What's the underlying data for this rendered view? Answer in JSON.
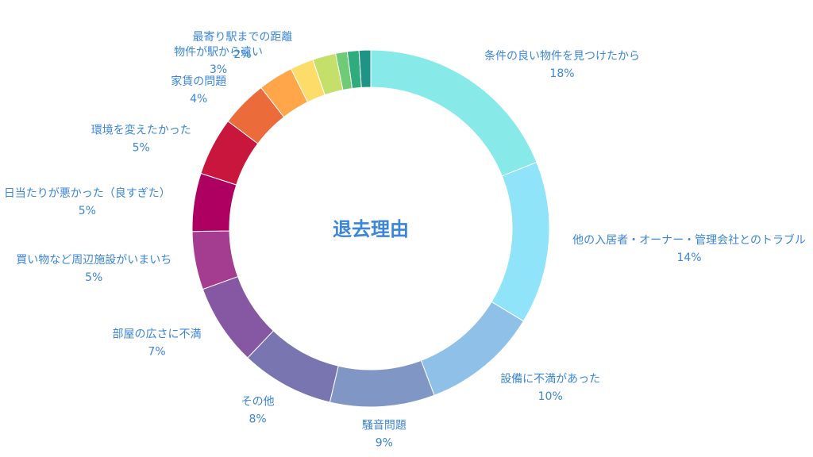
{
  "chart_data": {
    "type": "pie",
    "title": "",
    "center_label": "退去理由",
    "categories": [
      "条件の良い物件を見つけたから",
      "他の入居者・オーナー・管理会社とのトラブル",
      "設備に不満があった",
      "騒音問題",
      "その他",
      "部屋の広さに不満",
      "買い物など周辺施設がいまいち",
      "日当たりが悪かった（良すぎた）",
      "環境を変えたかった",
      "家賃の問題",
      "物件が駅から遠い",
      "最寄り駅までの距離",
      "",
      "",
      "",
      ""
    ],
    "values": [
      18,
      14,
      10,
      9,
      8,
      7,
      5,
      5,
      5,
      4,
      3,
      2,
      2,
      1,
      1,
      1
    ],
    "value_labels": [
      "18%",
      "14%",
      "10%",
      "9%",
      "8%",
      "7%",
      "5%",
      "5%",
      "5%",
      "4%",
      "3%",
      "2%",
      "",
      "",
      "",
      ""
    ],
    "colors": [
      "#87e9e8",
      "#8fe4fa",
      "#8ec0e8",
      "#8097c5",
      "#7875b0",
      "#8657a3",
      "#a43c8f",
      "#ad0060",
      "#c8163d",
      "#ec6b3b",
      "#ffa54a",
      "#fedc6a",
      "#c4e06b",
      "#6fcb75",
      "#30ab7d",
      "#1f9386",
      "#2e7c7b",
      "#1e5a86"
    ],
    "label_color": "#3c86d8",
    "legend": "none"
  }
}
